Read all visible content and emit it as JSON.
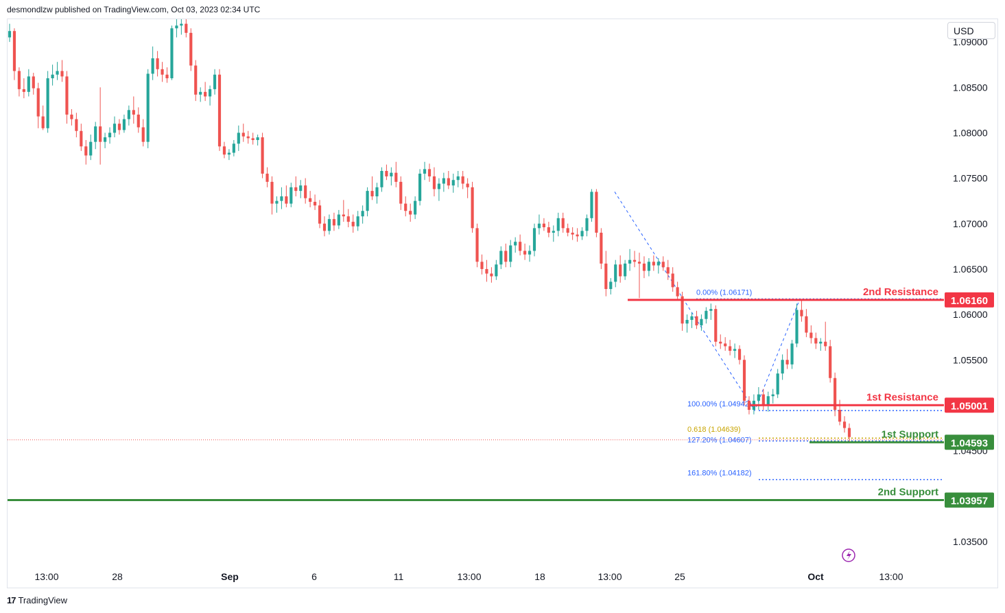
{
  "header": {
    "publisher_line": "desmondlzw published on TradingView.com, Oct 03, 2023 02:34 UTC"
  },
  "currency_label": "USD",
  "brand": {
    "icon": "tradingview-logo",
    "label": "TradingView"
  },
  "colors": {
    "up": "#26a69a",
    "down": "#ef5350",
    "resistance": "#f23645",
    "support": "#388e3c",
    "fib_blue": "#2962ff",
    "fib_gold": "#c8a400",
    "lightning": "#9c27b0"
  },
  "chart_data": {
    "type": "candlestick",
    "symbol_currency": "USD",
    "ylim": [
      1.0325,
      1.0925
    ],
    "y_ticks": [
      "1.09000",
      "1.08500",
      "1.08000",
      "1.07500",
      "1.07000",
      "1.06500",
      "1.06000",
      "1.05500",
      "1.04500",
      "1.03500"
    ],
    "x_ticks": [
      {
        "label": "13:00",
        "bold": false
      },
      {
        "label": "28",
        "bold": false
      },
      {
        "label": "Sep",
        "bold": true
      },
      {
        "label": "6",
        "bold": false
      },
      {
        "label": "11",
        "bold": false
      },
      {
        "label": "13:00",
        "bold": false
      },
      {
        "label": "18",
        "bold": false
      },
      {
        "label": "13:00",
        "bold": false
      },
      {
        "label": "25",
        "bold": false
      },
      {
        "label": "Oct",
        "bold": true
      },
      {
        "label": "13:00",
        "bold": false
      }
    ],
    "levels": [
      {
        "name": "2nd Resistance",
        "price": 1.0616,
        "badge": "1.06160",
        "kind": "resistance"
      },
      {
        "name": "1st Resistance",
        "price": 1.05001,
        "badge": "1.05001",
        "kind": "resistance"
      },
      {
        "name": "1st Support",
        "price": 1.04593,
        "badge": "1.04593",
        "kind": "support"
      },
      {
        "name": "2nd Support",
        "price": 1.03957,
        "badge": "1.03957",
        "kind": "support"
      }
    ],
    "fib_levels": [
      {
        "label": "0.00% (1.06171)",
        "price": 1.06171,
        "color": "blue"
      },
      {
        "label": "100.00% (1.04942)",
        "price": 1.04942,
        "color": "blue"
      },
      {
        "label": "0.618 (1.04639)",
        "price": 1.04639,
        "color": "gold"
      },
      {
        "label": "127.20% (1.04607)",
        "price": 1.04607,
        "color": "blue"
      },
      {
        "label": "161.80% (1.04182)",
        "price": 1.04182,
        "color": "blue"
      }
    ],
    "last_price": 1.0462,
    "candles": [
      [
        1.0905,
        1.092,
        1.09,
        1.0912
      ],
      [
        1.0912,
        1.0915,
        1.0858,
        1.0868
      ],
      [
        1.0868,
        1.0872,
        1.084,
        1.0848
      ],
      [
        1.0848,
        1.086,
        1.0838,
        1.0845
      ],
      [
        1.0845,
        1.087,
        1.084,
        1.0862
      ],
      [
        1.0862,
        1.0866,
        1.0842,
        1.0849
      ],
      [
        1.0849,
        1.0855,
        1.0805,
        1.0818
      ],
      [
        1.0818,
        1.083,
        1.0803,
        1.0805
      ],
      [
        1.0805,
        1.0868,
        1.08,
        1.086
      ],
      [
        1.086,
        1.0875,
        1.0852,
        1.0864
      ],
      [
        1.0864,
        1.0878,
        1.0858,
        1.0868
      ],
      [
        1.0868,
        1.088,
        1.0856,
        1.0862
      ],
      [
        1.0862,
        1.0868,
        1.081,
        1.082
      ],
      [
        1.082,
        1.0826,
        1.0808,
        1.0815
      ],
      [
        1.0815,
        1.0822,
        1.0795,
        1.0802
      ],
      [
        1.0802,
        1.081,
        1.078,
        1.0785
      ],
      [
        1.0785,
        1.0792,
        1.0765,
        1.0775
      ],
      [
        1.0775,
        1.0798,
        1.077,
        1.079
      ],
      [
        1.079,
        1.0812,
        1.0782,
        1.0807
      ],
      [
        1.0807,
        1.085,
        1.0765,
        1.079
      ],
      [
        1.079,
        1.08,
        1.0783,
        1.0795
      ],
      [
        1.0795,
        1.0806,
        1.0788,
        1.08
      ],
      [
        1.08,
        1.0818,
        1.0795,
        1.081
      ],
      [
        1.081,
        1.0815,
        1.0798,
        1.0803
      ],
      [
        1.0803,
        1.082,
        1.08,
        1.0815
      ],
      [
        1.0815,
        1.083,
        1.0808,
        1.0825
      ],
      [
        1.0825,
        1.084,
        1.081,
        1.082
      ],
      [
        1.082,
        1.0828,
        1.08,
        1.0806
      ],
      [
        1.0806,
        1.0815,
        1.0785,
        1.079
      ],
      [
        1.079,
        1.087,
        1.0783,
        1.0865
      ],
      [
        1.0865,
        1.0895,
        1.0858,
        1.0882
      ],
      [
        1.0882,
        1.089,
        1.0862,
        1.087
      ],
      [
        1.087,
        1.0878,
        1.0856,
        1.0864
      ],
      [
        1.0864,
        1.0872,
        1.0855,
        1.086
      ],
      [
        1.086,
        1.0918,
        1.0858,
        1.0915
      ],
      [
        1.0915,
        1.0925,
        1.0905,
        1.0918
      ],
      [
        1.0918,
        1.0925,
        1.0908,
        1.092
      ],
      [
        1.092,
        1.0925,
        1.0905,
        1.091
      ],
      [
        1.091,
        1.0915,
        1.0868,
        1.0874
      ],
      [
        1.0874,
        1.088,
        1.0835,
        1.0842
      ],
      [
        1.0842,
        1.085,
        1.0834,
        1.0845
      ],
      [
        1.0845,
        1.0856,
        1.0835,
        1.084
      ],
      [
        1.084,
        1.0852,
        1.083,
        1.0848
      ],
      [
        1.0848,
        1.087,
        1.0842,
        1.0864
      ],
      [
        1.0864,
        1.087,
        1.078,
        1.0785
      ],
      [
        1.0785,
        1.079,
        1.0772,
        1.0776
      ],
      [
        1.0776,
        1.0782,
        1.077,
        1.0778
      ],
      [
        1.0778,
        1.0792,
        1.0774,
        1.0788
      ],
      [
        1.0788,
        1.0808,
        1.078,
        1.08
      ],
      [
        1.08,
        1.081,
        1.079,
        1.0796
      ],
      [
        1.0796,
        1.0802,
        1.0788,
        1.0794
      ],
      [
        1.0794,
        1.08,
        1.0787,
        1.0792
      ],
      [
        1.0792,
        1.0798,
        1.0786,
        1.0795
      ],
      [
        1.0795,
        1.08,
        1.075,
        1.0755
      ],
      [
        1.0755,
        1.0762,
        1.074,
        1.0746
      ],
      [
        1.0746,
        1.0752,
        1.071,
        1.0722
      ],
      [
        1.0722,
        1.073,
        1.0712,
        1.0725
      ],
      [
        1.0725,
        1.074,
        1.0716,
        1.073
      ],
      [
        1.073,
        1.0742,
        1.0718,
        1.0722
      ],
      [
        1.0722,
        1.0745,
        1.0718,
        1.074
      ],
      [
        1.074,
        1.0752,
        1.073,
        1.0736
      ],
      [
        1.0736,
        1.0748,
        1.0728,
        1.0742
      ],
      [
        1.0742,
        1.075,
        1.0722,
        1.0728
      ],
      [
        1.0728,
        1.0736,
        1.0718,
        1.0724
      ],
      [
        1.0724,
        1.0732,
        1.0715,
        1.072
      ],
      [
        1.072,
        1.0726,
        1.0695,
        1.07
      ],
      [
        1.07,
        1.0708,
        1.0686,
        1.0692
      ],
      [
        1.0692,
        1.071,
        1.0688,
        1.0705
      ],
      [
        1.0705,
        1.0712,
        1.0692,
        1.0698
      ],
      [
        1.0698,
        1.0715,
        1.0694,
        1.071
      ],
      [
        1.071,
        1.0726,
        1.0702,
        1.0708
      ],
      [
        1.0708,
        1.0716,
        1.0696,
        1.0702
      ],
      [
        1.0702,
        1.071,
        1.069,
        1.0697
      ],
      [
        1.0697,
        1.0714,
        1.0692,
        1.0708
      ],
      [
        1.0708,
        1.072,
        1.07,
        1.0714
      ],
      [
        1.0714,
        1.074,
        1.0708,
        1.0736
      ],
      [
        1.0736,
        1.0752,
        1.0726,
        1.073
      ],
      [
        1.073,
        1.0745,
        1.0722,
        1.074
      ],
      [
        1.074,
        1.0762,
        1.0735,
        1.0758
      ],
      [
        1.0758,
        1.0765,
        1.0748,
        1.0752
      ],
      [
        1.0752,
        1.0762,
        1.0742,
        1.0756
      ],
      [
        1.0756,
        1.0768,
        1.074,
        1.0746
      ],
      [
        1.0746,
        1.0752,
        1.0715,
        1.0722
      ],
      [
        1.0722,
        1.073,
        1.0708,
        1.0714
      ],
      [
        1.0714,
        1.0722,
        1.0702,
        1.071
      ],
      [
        1.071,
        1.073,
        1.0705,
        1.0725
      ],
      [
        1.0725,
        1.076,
        1.072,
        1.0755
      ],
      [
        1.0755,
        1.0768,
        1.0748,
        1.076
      ],
      [
        1.076,
        1.0766,
        1.0746,
        1.0752
      ],
      [
        1.0752,
        1.0762,
        1.073,
        1.0738
      ],
      [
        1.0738,
        1.075,
        1.0725,
        1.0744
      ],
      [
        1.0744,
        1.0756,
        1.0735,
        1.075
      ],
      [
        1.075,
        1.0758,
        1.0738,
        1.0742
      ],
      [
        1.0742,
        1.0755,
        1.0734,
        1.0748
      ],
      [
        1.0748,
        1.0758,
        1.074,
        1.0752
      ],
      [
        1.0752,
        1.0758,
        1.0738,
        1.0744
      ],
      [
        1.0744,
        1.075,
        1.0728,
        1.074
      ],
      [
        1.074,
        1.0746,
        1.069,
        1.0695
      ],
      [
        1.0695,
        1.07,
        1.0652,
        1.0658
      ],
      [
        1.0658,
        1.0666,
        1.0644,
        1.065
      ],
      [
        1.065,
        1.066,
        1.0636,
        1.0645
      ],
      [
        1.0645,
        1.0652,
        1.0635,
        1.0642
      ],
      [
        1.0642,
        1.066,
        1.0638,
        1.0655
      ],
      [
        1.0655,
        1.0675,
        1.065,
        1.067
      ],
      [
        1.067,
        1.0678,
        1.0652,
        1.0658
      ],
      [
        1.0658,
        1.0682,
        1.0652,
        1.0676
      ],
      [
        1.0676,
        1.0685,
        1.0668,
        1.068
      ],
      [
        1.068,
        1.0688,
        1.0665,
        1.067
      ],
      [
        1.067,
        1.0678,
        1.066,
        1.0666
      ],
      [
        1.0666,
        1.0676,
        1.0658,
        1.067
      ],
      [
        1.067,
        1.07,
        1.0664,
        1.0695
      ],
      [
        1.0695,
        1.071,
        1.0688,
        1.07
      ],
      [
        1.07,
        1.0706,
        1.0692,
        1.0696
      ],
      [
        1.0696,
        1.0702,
        1.0685,
        1.069
      ],
      [
        1.069,
        1.0698,
        1.068,
        1.0692
      ],
      [
        1.0692,
        1.0712,
        1.0686,
        1.0706
      ],
      [
        1.0706,
        1.0712,
        1.069,
        1.0695
      ],
      [
        1.0695,
        1.07,
        1.0686,
        1.069
      ],
      [
        1.069,
        1.0696,
        1.0682,
        1.0688
      ],
      [
        1.0688,
        1.0695,
        1.068,
        1.0686
      ],
      [
        1.0686,
        1.0696,
        1.0682,
        1.0692
      ],
      [
        1.0692,
        1.071,
        1.0686,
        1.0706
      ],
      [
        1.0706,
        1.0738,
        1.0702,
        1.0735
      ],
      [
        1.0735,
        1.0738,
        1.0685,
        1.069
      ],
      [
        1.069,
        1.0695,
        1.065,
        1.0656
      ],
      [
        1.0656,
        1.067,
        1.062,
        1.0628
      ],
      [
        1.0628,
        1.064,
        1.0622,
        1.0636
      ],
      [
        1.0636,
        1.066,
        1.063,
        1.0655
      ],
      [
        1.0655,
        1.0665,
        1.0635,
        1.0642
      ],
      [
        1.0642,
        1.066,
        1.0638,
        1.0656
      ],
      [
        1.0656,
        1.0672,
        1.0648,
        1.066
      ],
      [
        1.066,
        1.067,
        1.0652,
        1.0658
      ],
      [
        1.0658,
        1.0668,
        1.0618,
        1.0656
      ],
      [
        1.0656,
        1.0664,
        1.064,
        1.0648
      ],
      [
        1.0648,
        1.0662,
        1.0642,
        1.0658
      ],
      [
        1.0658,
        1.0665,
        1.0648,
        1.0654
      ],
      [
        1.0654,
        1.0662,
        1.0645,
        1.0658
      ],
      [
        1.0658,
        1.0664,
        1.0648,
        1.0652
      ],
      [
        1.0652,
        1.066,
        1.0638,
        1.0645
      ],
      [
        1.0645,
        1.0652,
        1.0625,
        1.063
      ],
      [
        1.063,
        1.0636,
        1.0616,
        1.062
      ],
      [
        1.062,
        1.0625,
        1.0582,
        1.059
      ],
      [
        1.059,
        1.06,
        1.058,
        1.0594
      ],
      [
        1.0594,
        1.0602,
        1.0585,
        1.0598
      ],
      [
        1.0598,
        1.0604,
        1.0584,
        1.0588
      ],
      [
        1.0588,
        1.06,
        1.0582,
        1.0595
      ],
      [
        1.0595,
        1.0608,
        1.059,
        1.0604
      ],
      [
        1.0604,
        1.0612,
        1.0594,
        1.0606
      ],
      [
        1.0606,
        1.061,
        1.0565,
        1.057
      ],
      [
        1.057,
        1.0578,
        1.0562,
        1.0568
      ],
      [
        1.0568,
        1.0575,
        1.056,
        1.0565
      ],
      [
        1.0565,
        1.0572,
        1.0555,
        1.056
      ],
      [
        1.056,
        1.0568,
        1.0552,
        1.0562
      ],
      [
        1.0562,
        1.0566,
        1.0545,
        1.055
      ],
      [
        1.055,
        1.0555,
        1.05,
        1.0505
      ],
      [
        1.0505,
        1.051,
        1.049,
        1.0495
      ],
      [
        1.0495,
        1.0512,
        1.049,
        1.0505
      ],
      [
        1.0505,
        1.052,
        1.0495,
        1.0512
      ],
      [
        1.0512,
        1.0518,
        1.0495,
        1.05
      ],
      [
        1.05,
        1.0515,
        1.0493,
        1.051
      ],
      [
        1.051,
        1.0518,
        1.0502,
        1.0512
      ],
      [
        1.0512,
        1.054,
        1.0508,
        1.0535
      ],
      [
        1.0535,
        1.0556,
        1.0528,
        1.055
      ],
      [
        1.055,
        1.0562,
        1.054,
        1.0545
      ],
      [
        1.0545,
        1.0572,
        1.054,
        1.0568
      ],
      [
        1.0568,
        1.0612,
        1.0564,
        1.0605
      ],
      [
        1.0605,
        1.0617,
        1.0592,
        1.0598
      ],
      [
        1.0598,
        1.0606,
        1.0575,
        1.058
      ],
      [
        1.058,
        1.0588,
        1.0568,
        1.0574
      ],
      [
        1.0574,
        1.058,
        1.0562,
        1.0568
      ],
      [
        1.0568,
        1.0574,
        1.056,
        1.057
      ],
      [
        1.057,
        1.0592,
        1.056,
        1.0565
      ],
      [
        1.0565,
        1.0572,
        1.0525,
        1.053
      ],
      [
        1.053,
        1.0536,
        1.0488,
        1.0495
      ],
      [
        1.0495,
        1.0506,
        1.0478,
        1.0482
      ],
      [
        1.0482,
        1.0488,
        1.047,
        1.0475
      ],
      [
        1.0475,
        1.048,
        1.046,
        1.0465
      ]
    ]
  }
}
